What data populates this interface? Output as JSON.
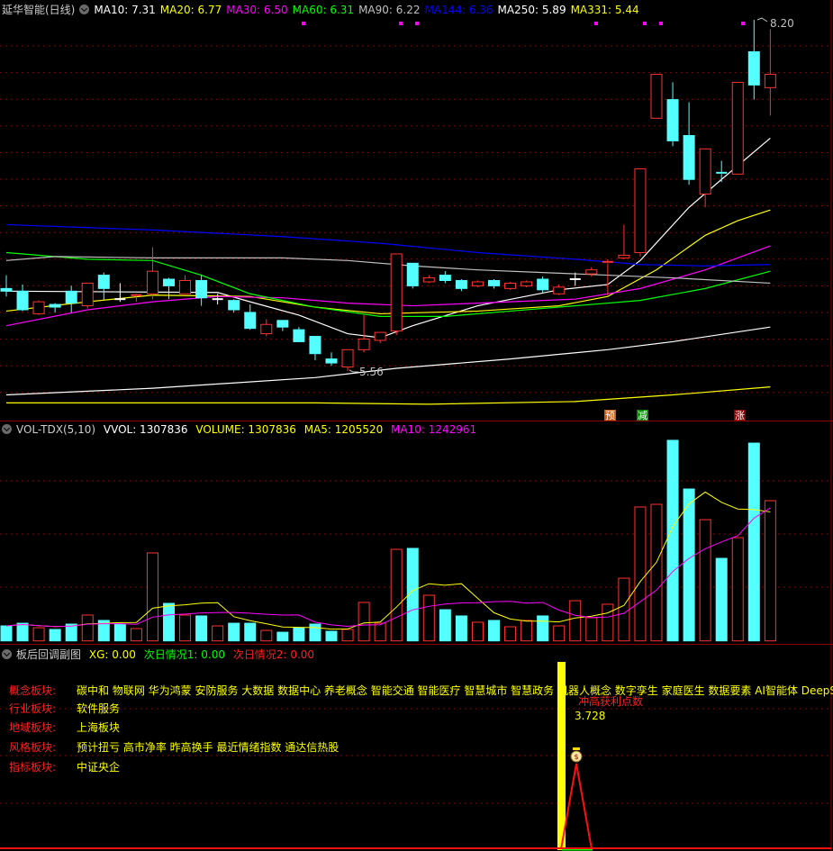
{
  "main": {
    "title": "延华智能(日线)",
    "ma_labels": [
      {
        "text": "MA10: 7.31",
        "color": "#ffffff"
      },
      {
        "text": "MA20: 6.77",
        "color": "#ffff00"
      },
      {
        "text": "MA30: 6.50",
        "color": "#ff00ff"
      },
      {
        "text": "MA60: 6.31",
        "color": "#00ff00"
      },
      {
        "text": "MA90: 6.22",
        "color": "#c0c0c0"
      },
      {
        "text": "MA144: 6.36",
        "color": "#0000ff"
      },
      {
        "text": "MA250: 5.89",
        "color": "#ffffff"
      },
      {
        "text": "MA331: 5.44",
        "color": "#ffff00"
      }
    ],
    "high_label": "8.20",
    "low_label": "5.56",
    "markers": [
      {
        "text": "预",
        "bg": "#c85a14"
      },
      {
        "text": "减",
        "bg": "#0a8a0a"
      },
      {
        "text": "涨",
        "bg": "#8b0000"
      }
    ]
  },
  "chart_data": [
    {
      "type": "candlestick",
      "ylim": [
        5.2,
        8.3
      ],
      "candles": [
        [
          6.18,
          6.28,
          6.12,
          6.16
        ],
        [
          6.16,
          6.21,
          6.01,
          6.02
        ],
        [
          5.99,
          6.09,
          5.98,
          6.08
        ],
        [
          6.06,
          6.07,
          6.0,
          6.04
        ],
        [
          6.16,
          6.2,
          6.0,
          6.07
        ],
        [
          6.05,
          6.22,
          6.03,
          6.22
        ],
        [
          6.28,
          6.3,
          6.09,
          6.18
        ],
        [
          6.1,
          6.22,
          6.08,
          6.1
        ],
        [
          6.12,
          6.14,
          6.08,
          6.13
        ],
        [
          6.14,
          6.49,
          6.1,
          6.31
        ],
        [
          6.25,
          6.26,
          6.1,
          6.2
        ],
        [
          6.14,
          6.28,
          6.14,
          6.24
        ],
        [
          6.24,
          6.28,
          6.05,
          6.11
        ],
        [
          6.1,
          6.14,
          6.06,
          6.1
        ],
        [
          6.09,
          6.1,
          6.0,
          6.02
        ],
        [
          6.0,
          6.06,
          5.87,
          5.88
        ],
        [
          5.84,
          5.95,
          5.82,
          5.91
        ],
        [
          5.94,
          5.94,
          5.86,
          5.89
        ],
        [
          5.87,
          5.89,
          5.78,
          5.78
        ],
        [
          5.82,
          5.82,
          5.64,
          5.69
        ],
        [
          5.65,
          5.7,
          5.6,
          5.62
        ],
        [
          5.59,
          5.72,
          5.56,
          5.72
        ],
        [
          5.72,
          5.98,
          5.7,
          5.8
        ],
        [
          5.79,
          5.85,
          5.77,
          5.85
        ],
        [
          5.86,
          6.44,
          5.83,
          6.44
        ],
        [
          6.37,
          6.37,
          6.18,
          6.2
        ],
        [
          6.23,
          6.28,
          6.22,
          6.26
        ],
        [
          6.28,
          6.31,
          6.22,
          6.24
        ],
        [
          6.24,
          6.25,
          6.16,
          6.18
        ],
        [
          6.2,
          6.24,
          6.19,
          6.23
        ],
        [
          6.24,
          6.25,
          6.18,
          6.2
        ],
        [
          6.18,
          6.23,
          6.17,
          6.22
        ],
        [
          6.2,
          6.24,
          6.19,
          6.23
        ],
        [
          6.25,
          6.27,
          6.15,
          6.17
        ],
        [
          6.14,
          6.21,
          6.13,
          6.19
        ],
        [
          6.25,
          6.3,
          6.2,
          6.25
        ],
        [
          6.29,
          6.34,
          6.27,
          6.32
        ],
        [
          6.37,
          6.4,
          6.13,
          6.38
        ],
        [
          6.41,
          6.66,
          6.4,
          6.43
        ],
        [
          6.45,
          7.08,
          6.42,
          7.08
        ],
        [
          7.46,
          7.79,
          7.46,
          7.79
        ],
        [
          7.6,
          7.73,
          7.25,
          7.29
        ],
        [
          7.33,
          7.58,
          6.96,
          7.0
        ],
        [
          6.89,
          7.23,
          6.79,
          7.23
        ],
        [
          7.05,
          7.14,
          6.98,
          7.04
        ],
        [
          7.04,
          7.73,
          7.04,
          7.73
        ],
        [
          7.96,
          8.2,
          7.6,
          7.71
        ],
        [
          7.69,
          8.13,
          7.48,
          7.79
        ]
      ],
      "candle_fields": [
        "open",
        "high",
        "low",
        "close"
      ],
      "moving_averages": [
        {
          "name": "MA10",
          "color": "#ffffff",
          "points": [
            [
              0,
              6.16
            ],
            [
              13,
              6.15
            ],
            [
              15,
              6.08
            ],
            [
              18,
              5.98
            ],
            [
              21,
              5.84
            ],
            [
              23,
              5.81
            ],
            [
              25,
              5.9
            ],
            [
              29,
              6.05
            ],
            [
              34,
              6.17
            ],
            [
              37,
              6.21
            ],
            [
              39,
              6.39
            ],
            [
              42,
              6.79
            ],
            [
              44,
              7.0
            ],
            [
              47,
              7.31
            ]
          ]
        },
        {
          "name": "MA20",
          "color": "#ffff00",
          "points": [
            [
              0,
              6.01
            ],
            [
              5,
              6.08
            ],
            [
              9,
              6.13
            ],
            [
              15,
              6.12
            ],
            [
              19,
              6.04
            ],
            [
              23,
              5.99
            ],
            [
              29,
              6.01
            ],
            [
              34,
              6.05
            ],
            [
              37,
              6.12
            ],
            [
              40,
              6.32
            ],
            [
              43,
              6.58
            ],
            [
              45,
              6.69
            ],
            [
              47,
              6.77
            ]
          ]
        },
        {
          "name": "MA30",
          "color": "#ff00ff",
          "points": [
            [
              0,
              5.9
            ],
            [
              5,
              6.02
            ],
            [
              9,
              6.08
            ],
            [
              13,
              6.12
            ],
            [
              17,
              6.11
            ],
            [
              21,
              6.07
            ],
            [
              25,
              6.05
            ],
            [
              29,
              6.07
            ],
            [
              35,
              6.1
            ],
            [
              39,
              6.18
            ],
            [
              43,
              6.32
            ],
            [
              47,
              6.5
            ]
          ]
        },
        {
          "name": "MA60",
          "color": "#00ff00",
          "points": [
            [
              0,
              6.45
            ],
            [
              5,
              6.4
            ],
            [
              9,
              6.39
            ],
            [
              12,
              6.28
            ],
            [
              15,
              6.14
            ],
            [
              19,
              6.04
            ],
            [
              23,
              5.97
            ],
            [
              27,
              5.97
            ],
            [
              31,
              6.01
            ],
            [
              35,
              6.05
            ],
            [
              39,
              6.09
            ],
            [
              43,
              6.18
            ],
            [
              47,
              6.31
            ]
          ]
        },
        {
          "name": "MA90",
          "color": "#c0c0c0",
          "points": [
            [
              0,
              6.39
            ],
            [
              3,
              6.42
            ],
            [
              9,
              6.41
            ],
            [
              17,
              6.41
            ],
            [
              21,
              6.39
            ],
            [
              25,
              6.35
            ],
            [
              29,
              6.32
            ],
            [
              33,
              6.3
            ],
            [
              37,
              6.28
            ],
            [
              41,
              6.26
            ],
            [
              47,
              6.22
            ]
          ]
        },
        {
          "name": "MA144",
          "color": "#0000ff",
          "points": [
            [
              0,
              6.66
            ],
            [
              9,
              6.62
            ],
            [
              17,
              6.57
            ],
            [
              23,
              6.52
            ],
            [
              29,
              6.45
            ],
            [
              35,
              6.4
            ],
            [
              39,
              6.36
            ],
            [
              43,
              6.35
            ],
            [
              47,
              6.36
            ]
          ]
        },
        {
          "name": "MA250",
          "color": "#ffffff",
          "points": [
            [
              0,
              5.38
            ],
            [
              9,
              5.43
            ],
            [
              19,
              5.51
            ],
            [
              24,
              5.58
            ],
            [
              31,
              5.65
            ],
            [
              37,
              5.72
            ],
            [
              41,
              5.78
            ],
            [
              47,
              5.89
            ]
          ]
        },
        {
          "name": "MA331",
          "color": "#ffff00",
          "points": [
            [
              0,
              5.32
            ],
            [
              19,
              5.32
            ],
            [
              26,
              5.31
            ],
            [
              35,
              5.33
            ],
            [
              41,
              5.38
            ],
            [
              47,
              5.44
            ]
          ]
        }
      ]
    },
    {
      "type": "bar",
      "title": "VOL-TDX(5,10)",
      "values": [
        140000,
        165000,
        123000,
        107000,
        157000,
        241000,
        191000,
        157000,
        115000,
        821000,
        350000,
        241000,
        233000,
        140000,
        165000,
        165000,
        98000,
        81000,
        123000,
        157000,
        90000,
        107000,
        359000,
        165000,
        854000,
        863000,
        426000,
        291000,
        233000,
        174000,
        191000,
        132000,
        191000,
        233000,
        140000,
        375000,
        216000,
        342000,
        585000,
        1249000,
        1274000,
        1871000,
        1417000,
        1131000,
        770000,
        963000,
        1845000,
        1307836
      ],
      "up": [
        0,
        0,
        1,
        0,
        0,
        1,
        0,
        0,
        1,
        1,
        0,
        1,
        0,
        1,
        0,
        0,
        1,
        0,
        0,
        0,
        0,
        1,
        1,
        1,
        1,
        0,
        1,
        0,
        0,
        1,
        0,
        1,
        1,
        0,
        1,
        1,
        1,
        1,
        1,
        1,
        1,
        0,
        0,
        1,
        0,
        1,
        0,
        1
      ],
      "ylim": [
        0,
        1900000
      ]
    }
  ],
  "volume": {
    "indicator": "VOL-TDX(5,10)",
    "vvol": "VVOL: 1307836",
    "volume": "VOLUME: 1307836",
    "ma5": "MA5: 1205520",
    "ma10": "MA10: 1242961",
    "colors": {
      "up": "#ff3232",
      "down": "#54ffff",
      "ma5": "#ffff00",
      "ma10": "#ff00ff"
    }
  },
  "sub": {
    "title": "板后回调副图",
    "xg": "XG: 0.00",
    "next1": "次日情况1: 0.00",
    "next2": "次日情况2: 0.00",
    "rows": [
      {
        "label": "概念板块:",
        "value": "碳中和 物联网 华为鸿蒙 安防服务 大数据 数据中心 养老概念 智能交通 智能医疗 智慧城市 智慧政务 机器人概念 数字孪生 家庭医生 数据要素 AI智能体 DeepSeek"
      },
      {
        "label": "行业板块:",
        "value": "软件服务"
      },
      {
        "label": "地域板块:",
        "value": "上海板块"
      },
      {
        "label": "风格板块:",
        "value": "预计扭亏 高市净率 昨高换手 最近情绪指数 通达信热股"
      },
      {
        "label": "指标板块:",
        "value": "中证央企"
      }
    ],
    "profit_label": "冲高获利点数",
    "profit_value": "3.728"
  }
}
